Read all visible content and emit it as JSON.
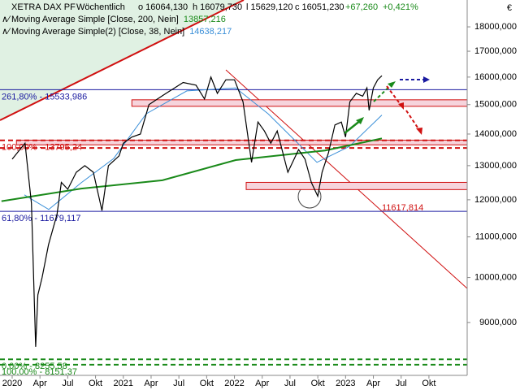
{
  "chart_data": {
    "type": "line",
    "header": {
      "symbol": "XETRA DAX PF",
      "interval": "Wöchentlich",
      "open": "o 16064,130",
      "high": "h 16079,730",
      "low": "l 15629,120",
      "close": "c 16051,230",
      "change": "+67,260",
      "change_pct": "+0,421%"
    },
    "currency": "€",
    "log_scale": true,
    "xlim": [
      -5.7,
      212.9
    ],
    "ylim": [
      7950,
      19170
    ],
    "xticks": [
      {
        "value": 0,
        "label": "2020"
      },
      {
        "value": 13,
        "label": "Apr"
      },
      {
        "value": 26,
        "label": "Jul"
      },
      {
        "value": 39,
        "label": "Okt"
      },
      {
        "value": 52,
        "label": "2021"
      },
      {
        "value": 65,
        "label": "Apr"
      },
      {
        "value": 78,
        "label": "Jul"
      },
      {
        "value": 91,
        "label": "Okt"
      },
      {
        "value": 104,
        "label": "2022"
      },
      {
        "value": 117,
        "label": "Apr"
      },
      {
        "value": 130,
        "label": "Jul"
      },
      {
        "value": 143,
        "label": "Okt"
      },
      {
        "value": 156,
        "label": "2023"
      },
      {
        "value": 169,
        "label": "Apr"
      },
      {
        "value": 182,
        "label": "Jul"
      },
      {
        "value": 195,
        "label": "Okt"
      }
    ],
    "yticks": [
      {
        "value": 9000,
        "label": "9000,000"
      },
      {
        "value": 10000,
        "label": "10000,000"
      },
      {
        "value": 11000,
        "label": "11000,000"
      },
      {
        "value": 12000,
        "label": "12000,000"
      },
      {
        "value": 13000,
        "label": "13000,000"
      },
      {
        "value": 14000,
        "label": "14000,000"
      },
      {
        "value": 15000,
        "label": "15000,000"
      },
      {
        "value": 16000,
        "label": "16000,000"
      },
      {
        "value": 17000,
        "label": "17000,000"
      },
      {
        "value": 18000,
        "label": "18000,000"
      }
    ],
    "series": [
      {
        "name": "XETRA DAX PF",
        "color": "#000000",
        "width": 1.2,
        "x": [
          0,
          6,
          9,
          11,
          12,
          14,
          17,
          21,
          23,
          26,
          30,
          34,
          38,
          42,
          45,
          50,
          52,
          56,
          60,
          64,
          68,
          72,
          76,
          80,
          86,
          90,
          93,
          96,
          100,
          104,
          108,
          112,
          115,
          118,
          121,
          124,
          127,
          129,
          134,
          137,
          140,
          143,
          145,
          148,
          151,
          154,
          156,
          158,
          161,
          164,
          166,
          167,
          169,
          171,
          173
        ],
        "values": [
          13200,
          13700,
          11900,
          8500,
          9600,
          10000,
          10800,
          11600,
          12500,
          12300,
          12800,
          13000,
          12800,
          11700,
          13000,
          13300,
          13700,
          13900,
          14000,
          15000,
          15200,
          15400,
          15600,
          15800,
          15700,
          15200,
          16000,
          15400,
          15900,
          15900,
          15100,
          13100,
          14400,
          14100,
          13700,
          14100,
          13300,
          12800,
          13500,
          13200,
          12500,
          12100,
          12800,
          13400,
          14300,
          14400,
          13900,
          15100,
          15400,
          15300,
          15600,
          14800,
          15600,
          15900,
          16050
        ]
      },
      {
        "name": "Moving Average Simple [Close, 200, Nein]",
        "value_label": "13857,216",
        "color": "#1a8a1a",
        "width": 2,
        "x": [
          -5,
          32.3,
          70.3,
          104.6,
          146.4,
          173
        ],
        "values": [
          11960,
          12320,
          12560,
          13170,
          13470,
          13857
        ]
      },
      {
        "name": "Moving Average Simple(2) [Close, 38, Nein]",
        "value_label": "14638,217",
        "color": "#3a8fd8",
        "width": 1,
        "x": [
          5.7,
          17.1,
          32.3,
          47.5,
          62.7,
          81.7,
          104.6,
          119.8,
          131.2,
          142.6,
          157.8,
          173
        ],
        "values": [
          12140,
          11730,
          12490,
          13220,
          14680,
          15490,
          15600,
          14680,
          13870,
          13100,
          13600,
          14638
        ]
      }
    ],
    "levels": [
      {
        "label": "261,80% - 15533,986",
        "value": 15533.986,
        "color": "#1a1aa0",
        "dashed": false
      },
      {
        "label": "100,00% - 13795,24",
        "value": 13795.24,
        "color": "#d01010",
        "dashed": true
      },
      {
        "label": "61,80% - 11679,117",
        "value": 11679.117,
        "color": "#1a1aa0",
        "dashed": false
      },
      {
        "label": "0,00% - 8255,58",
        "value": 8255.58,
        "color": "#1a8a1a",
        "dashed": true
      },
      {
        "label": "100,00% - 8151,37",
        "value": 8151.37,
        "color": "#1a8a1a",
        "dashed": true
      }
    ],
    "extra_dashed_level": {
      "value": 13550,
      "color": "#d01010"
    },
    "zones": [
      {
        "x": 56,
        "low": 14940,
        "high": 15170
      },
      {
        "x": 2,
        "low": 13650,
        "high": 13800
      },
      {
        "x": 109.5,
        "low": 12290,
        "high": 12500
      }
    ],
    "trend_label": "11617,814"
  }
}
